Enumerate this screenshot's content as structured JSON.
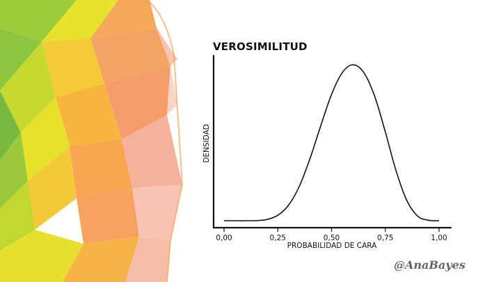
{
  "chart_data": {
    "type": "line",
    "title": "VEROSIMILITUD",
    "xlabel": "PROBABILIDAD DE CARA",
    "ylabel": "DENSIDAD",
    "xlim": [
      0.0,
      1.0
    ],
    "x_ticks": [
      "0,00",
      "0,25",
      "0,50",
      "0,75",
      "1,00"
    ],
    "x_tick_values": [
      0.0,
      0.25,
      0.5,
      0.75,
      1.0
    ],
    "grid": false,
    "series": [
      {
        "x": [
          0.0,
          0.05,
          0.1,
          0.15,
          0.2,
          0.25,
          0.3,
          0.35,
          0.4,
          0.45,
          0.5,
          0.55,
          0.6,
          0.65,
          0.7,
          0.75,
          0.8,
          0.85,
          0.9,
          0.95,
          1.0
        ],
        "values": [
          0.0,
          0.0,
          0.0,
          0.001,
          0.008,
          0.035,
          0.1,
          0.22,
          0.4,
          0.61,
          0.81,
          0.95,
          1.0,
          0.95,
          0.8,
          0.57,
          0.32,
          0.13,
          0.03,
          0.003,
          0.0
        ]
      }
    ],
    "line_color": "#111111"
  },
  "watermark": "@AnaBayes",
  "decor": {
    "polygon_colors": [
      "#8cc63f",
      "#c3d82c",
      "#e9e328",
      "#f6c43a",
      "#f7a85a",
      "#f49a6a",
      "#f6b59a",
      "#fad2c4"
    ]
  }
}
